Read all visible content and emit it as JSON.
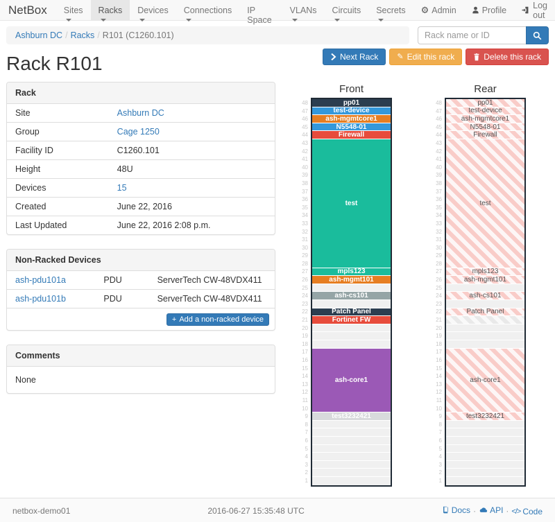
{
  "navbar": {
    "brand": "NetBox",
    "items": [
      {
        "label": "Sites",
        "active": false
      },
      {
        "label": "Racks",
        "active": true
      },
      {
        "label": "Devices",
        "active": false
      },
      {
        "label": "Connections",
        "active": false
      },
      {
        "label": "IP Space",
        "active": false
      },
      {
        "label": "VLANs",
        "active": false
      },
      {
        "label": "Circuits",
        "active": false
      },
      {
        "label": "Secrets",
        "active": false
      }
    ],
    "right": [
      {
        "label": "Admin",
        "icon": "gear-icon"
      },
      {
        "label": "Profile",
        "icon": "person-icon"
      },
      {
        "label": "Log out",
        "icon": "log-out-icon"
      }
    ]
  },
  "breadcrumb": {
    "items": [
      {
        "label": "Ashburn DC",
        "link": true
      },
      {
        "label": "Racks",
        "link": true
      },
      {
        "label": "R101 (C1260.101)",
        "link": false
      }
    ]
  },
  "search": {
    "placeholder": "Rack name or ID",
    "icon": "search-icon"
  },
  "actions": {
    "next": "Next Rack",
    "edit": "Edit this rack",
    "delete": "Delete this rack",
    "edit_glyph": "✎"
  },
  "page_title": "Rack R101",
  "rack_panel": {
    "title": "Rack",
    "rows": [
      {
        "label": "Site",
        "value": "Ashburn DC",
        "link": true
      },
      {
        "label": "Group",
        "value": "Cage 1250",
        "link": true
      },
      {
        "label": "Facility ID",
        "value": "C1260.101",
        "link": false
      },
      {
        "label": "Height",
        "value": "48U",
        "link": false
      },
      {
        "label": "Devices",
        "value": "15",
        "link": true
      },
      {
        "label": "Created",
        "value": "June 22, 2016",
        "link": false
      },
      {
        "label": "Last Updated",
        "value": "June 22, 2016 2:08 p.m.",
        "link": false
      }
    ]
  },
  "non_racked": {
    "title": "Non-Racked Devices",
    "rows": [
      {
        "name": "ash-pdu101a",
        "role": "PDU",
        "type": "ServerTech CW-48VDX411"
      },
      {
        "name": "ash-pdu101b",
        "role": "PDU",
        "type": "ServerTech CW-48VDX411"
      }
    ],
    "add_button": "Add a non-racked device",
    "add_glyph": "+"
  },
  "comments": {
    "title": "Comments",
    "body": "None"
  },
  "elevations": {
    "front_title": "Front",
    "rear_title": "Rear",
    "units_total": 48,
    "top_unit": 48,
    "segments": [
      {
        "type": "device",
        "name": "pp01",
        "height": 1,
        "color": "#2c3e50"
      },
      {
        "type": "device",
        "name": "test-device",
        "height": 1,
        "color": "#3498db"
      },
      {
        "type": "device",
        "name": "ash-mgmtcore1",
        "height": 1,
        "color": "#e67e22"
      },
      {
        "type": "device",
        "name": "N5548-01",
        "height": 1,
        "color": "#3498db"
      },
      {
        "type": "device",
        "name": "Firewall",
        "height": 1,
        "color": "#e74c3c"
      },
      {
        "type": "device",
        "name": "test",
        "height": 16,
        "color": "#1abc9c"
      },
      {
        "type": "device",
        "name": "mpls123",
        "height": 1,
        "color": "#1abc9c"
      },
      {
        "type": "device",
        "name": "ash-mgmt101",
        "height": 1,
        "color": "#e67e22"
      },
      {
        "type": "empty",
        "height": 1
      },
      {
        "type": "device",
        "name": "ash-cs101",
        "height": 1,
        "color": "#95a5a6"
      },
      {
        "type": "empty",
        "height": 1
      },
      {
        "type": "device",
        "name": "Patch Panel",
        "height": 1,
        "color": "#2c3e50"
      },
      {
        "type": "device",
        "name": "Fortinet FW",
        "height": 1,
        "color": "#e74c3c",
        "rear_style": "hatch-gray-no-label"
      },
      {
        "type": "empty",
        "height": 3
      },
      {
        "type": "device",
        "name": "ash-core1",
        "height": 8,
        "color": "#9b59b6"
      },
      {
        "type": "device",
        "name": "test3232421",
        "height": 1,
        "color": "#d8dadc"
      },
      {
        "type": "empty",
        "height": 8
      }
    ]
  },
  "footer": {
    "hostname": "netbox-demo01",
    "timestamp": "2016-06-27 15:35:48 UTC",
    "links": [
      {
        "label": "Docs",
        "icon": "book-icon"
      },
      {
        "label": "API",
        "icon": "cloud-icon"
      },
      {
        "label": "Code",
        "icon": "code-icon",
        "glyph": "</>"
      }
    ],
    "separator": "·"
  },
  "colors": {
    "accent": "#337ab7",
    "warning": "#f0ad4e",
    "danger": "#d9534f",
    "rear_hatch_pink": "#f9ccc8",
    "empty_unit": "#f0f0f0"
  }
}
